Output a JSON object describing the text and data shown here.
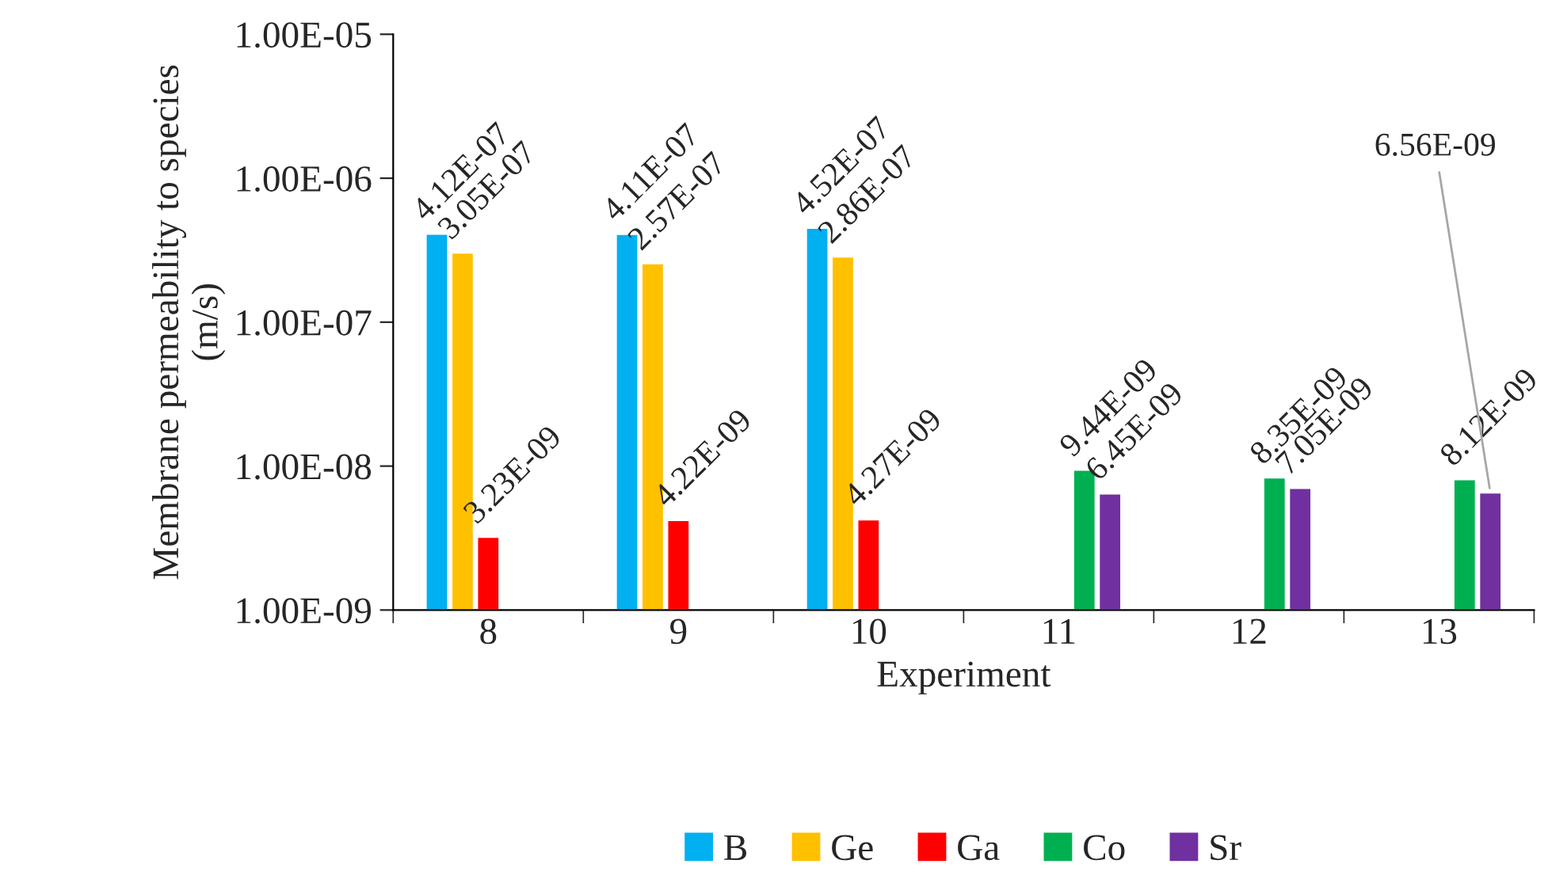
{
  "chart_data": {
    "type": "bar",
    "xlabel": "Experiment",
    "ylabel": "Membrane permeability to species\n(m/s)",
    "categories": [
      "8",
      "9",
      "10",
      "11",
      "12",
      "13"
    ],
    "series": [
      {
        "name": "B",
        "color": "#00b0f0",
        "values": [
          4.12e-07,
          4.11e-07,
          4.52e-07,
          null,
          null,
          null
        ],
        "value_labels": [
          "4.12E-07",
          "4.11E-07",
          "4.52E-07",
          null,
          null,
          null
        ]
      },
      {
        "name": "Ge",
        "color": "#ffc000",
        "values": [
          3.05e-07,
          2.57e-07,
          2.86e-07,
          null,
          null,
          null
        ],
        "value_labels": [
          "3.05E-07",
          "2.57E-07",
          "2.86E-07",
          null,
          null,
          null
        ]
      },
      {
        "name": "Ga",
        "color": "#ff0000",
        "values": [
          3.23e-09,
          4.22e-09,
          4.27e-09,
          null,
          null,
          null
        ],
        "value_labels": [
          "3.23E-09",
          "4.22E-09",
          "4.27E-09",
          null,
          null,
          null
        ]
      },
      {
        "name": "Co",
        "color": "#00b050",
        "values": [
          null,
          null,
          null,
          9.44e-09,
          8.35e-09,
          8.12e-09
        ],
        "value_labels": [
          null,
          null,
          null,
          "9.44E-09",
          "8.35E-09",
          "8.12E-09"
        ]
      },
      {
        "name": "Sr",
        "color": "#7030a0",
        "values": [
          null,
          null,
          null,
          6.45e-09,
          7.05e-09,
          6.56e-09
        ],
        "value_labels": [
          null,
          null,
          null,
          "6.45E-09",
          "7.05E-09",
          "6.56E-09"
        ]
      }
    ],
    "log": "y",
    "ylim": [
      1e-09,
      1e-05
    ],
    "yticks": [
      {
        "value": 1e-09,
        "label": "1.00E-09"
      },
      {
        "value": 1e-08,
        "label": "1.00E-08"
      },
      {
        "value": 1e-07,
        "label": "1.00E-07"
      },
      {
        "value": 1e-06,
        "label": "1.00E-06"
      },
      {
        "value": 1e-05,
        "label": "1.00E-05"
      }
    ],
    "grid": false,
    "legend": "bottom"
  }
}
